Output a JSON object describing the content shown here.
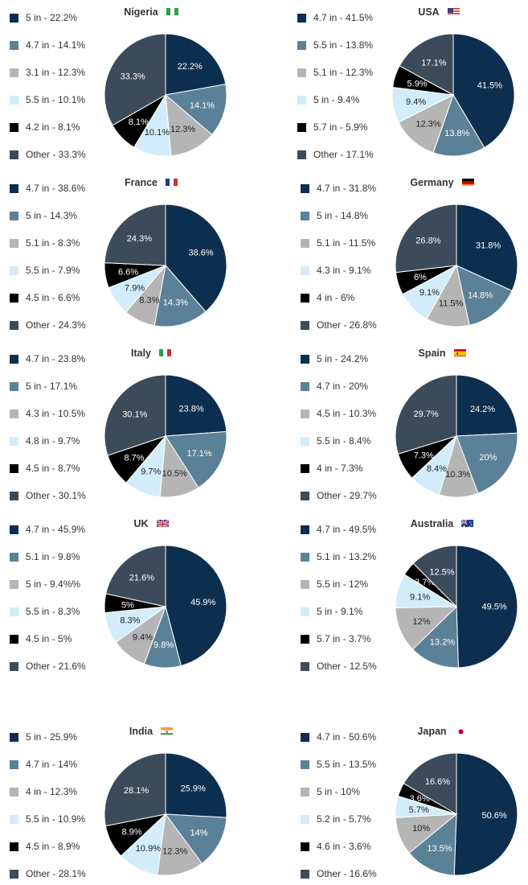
{
  "colors": {
    "c1": "#0d2f4f",
    "c2": "#5b8198",
    "c3": "#b5b5b5",
    "c4": "#d2ecfa",
    "c5": "#000000",
    "c6": "#3b4b5a"
  },
  "chart_data": [
    {
      "type": "pie",
      "title": "Nigeria",
      "flag": "nigeria-flag-icon",
      "slices": [
        {
          "label": "5 in",
          "value": 22.2,
          "legend": "5 in - 22.2%",
          "data_label": "22.2%",
          "color": "c1"
        },
        {
          "label": "4.7 in",
          "value": 14.1,
          "legend": "4.7 in - 14.1%",
          "data_label": "14.1%",
          "color": "c2"
        },
        {
          "label": "3.1 in",
          "value": 12.3,
          "legend": "3.1 in - 12.3%",
          "data_label": "12.3%",
          "color": "c3"
        },
        {
          "label": "5.5 in",
          "value": 10.1,
          "legend": "5.5 in - 10.1%",
          "data_label": "10.1%",
          "color": "c4"
        },
        {
          "label": "4.2 in",
          "value": 8.1,
          "legend": "4.2 in - 8.1%",
          "data_label": "8.1%",
          "color": "c5"
        },
        {
          "label": "Other",
          "value": 33.3,
          "legend": "Other - 33.3%",
          "data_label": "33.3%",
          "color": "c6"
        }
      ]
    },
    {
      "type": "pie",
      "title": "USA",
      "flag": "usa-flag-icon",
      "slices": [
        {
          "label": "4.7 in",
          "value": 41.5,
          "legend": "4.7 in - 41.5%",
          "data_label": "41.5%",
          "color": "c1"
        },
        {
          "label": "5.5 in",
          "value": 13.8,
          "legend": "5.5 in - 13.8%",
          "data_label": "13.8%",
          "color": "c2"
        },
        {
          "label": "5.1 in",
          "value": 12.3,
          "legend": "5.1 in - 12.3%",
          "data_label": "12.3%",
          "color": "c3"
        },
        {
          "label": "5 in",
          "value": 9.4,
          "legend": "5 in - 9.4%",
          "data_label": "9.4%",
          "color": "c4"
        },
        {
          "label": "5.7 in",
          "value": 5.9,
          "legend": "5.7 in - 5.9%",
          "data_label": "5.9%",
          "color": "c5"
        },
        {
          "label": "Other",
          "value": 17.1,
          "legend": "Other - 17.1%",
          "data_label": "17.1%",
          "color": "c6"
        }
      ]
    },
    {
      "type": "pie",
      "title": "France",
      "flag": "france-flag-icon",
      "slices": [
        {
          "label": "4.7 in",
          "value": 38.6,
          "legend": "4.7 in - 38.6%",
          "data_label": "38.6%",
          "color": "c1"
        },
        {
          "label": "5 in",
          "value": 14.3,
          "legend": "5 in - 14.3%",
          "data_label": "14.3%",
          "color": "c2"
        },
        {
          "label": "5.1 in",
          "value": 8.3,
          "legend": "5.1 in - 8.3%",
          "data_label": "8.3%",
          "color": "c3"
        },
        {
          "label": "5.5 in",
          "value": 7.9,
          "legend": "5.5 in - 7.9%",
          "data_label": "7.9%",
          "color": "c4"
        },
        {
          "label": "4.5 in",
          "value": 6.6,
          "legend": "4.5 in - 6.6%",
          "data_label": "6.6%",
          "color": "c5"
        },
        {
          "label": "Other",
          "value": 24.3,
          "legend": "Other - 24.3%",
          "data_label": "24.3%",
          "color": "c6"
        }
      ]
    },
    {
      "type": "pie",
      "title": "Germany",
      "flag": "germany-flag-icon",
      "slices": [
        {
          "label": "4.7 in",
          "value": 31.8,
          "legend": "4.7 in - 31.8%",
          "data_label": "31.8%",
          "color": "c1"
        },
        {
          "label": "5 in",
          "value": 14.8,
          "legend": "5 in - 14.8%",
          "data_label": "14.8%",
          "color": "c2"
        },
        {
          "label": "5.1 in",
          "value": 11.5,
          "legend": "5.1 in - 11.5%",
          "data_label": "11.5%",
          "color": "c3"
        },
        {
          "label": "4.3 in",
          "value": 9.1,
          "legend": "4.3 in - 9.1%",
          "data_label": "9.1%",
          "color": "c4"
        },
        {
          "label": "4 in",
          "value": 6,
          "legend": "4 in - 6%",
          "data_label": "6%",
          "color": "c5"
        },
        {
          "label": "Other",
          "value": 26.8,
          "legend": "Other - 26.8%",
          "data_label": "26.8%",
          "color": "c6"
        }
      ]
    },
    {
      "type": "pie",
      "title": "Italy",
      "flag": "italy-flag-icon",
      "slices": [
        {
          "label": "4.7 in",
          "value": 23.8,
          "legend": "4.7 in - 23.8%",
          "data_label": "23.8%",
          "color": "c1"
        },
        {
          "label": "5 in",
          "value": 17.1,
          "legend": "5 in - 17.1%",
          "data_label": "17.1%",
          "color": "c2"
        },
        {
          "label": "4.3 in",
          "value": 10.5,
          "legend": "4.3 in - 10.5%",
          "data_label": "10.5%",
          "color": "c3"
        },
        {
          "label": "4.8 in",
          "value": 9.7,
          "legend": "4.8 in - 9.7%",
          "data_label": "9.7%",
          "color": "c4"
        },
        {
          "label": "4.5 in",
          "value": 8.7,
          "legend": "4.5 in - 8.7%",
          "data_label": "8.7%",
          "color": "c5"
        },
        {
          "label": "Other",
          "value": 30.1,
          "legend": "Other - 30.1%",
          "data_label": "30.1%",
          "color": "c6"
        }
      ]
    },
    {
      "type": "pie",
      "title": "Spain",
      "flag": "spain-flag-icon",
      "slices": [
        {
          "label": "5 in",
          "value": 24.2,
          "legend": "5 in - 24.2%",
          "data_label": "24.2%",
          "color": "c1"
        },
        {
          "label": "4.7 in",
          "value": 20,
          "legend": "4.7 in - 20%",
          "data_label": "20%",
          "color": "c2"
        },
        {
          "label": "4.5 in",
          "value": 10.3,
          "legend": "4.5 in - 10.3%",
          "data_label": "10.3%",
          "color": "c3"
        },
        {
          "label": "5.5 in",
          "value": 8.4,
          "legend": "5.5 in - 8.4%",
          "data_label": "8.4%",
          "color": "c4"
        },
        {
          "label": "4 in",
          "value": 7.3,
          "legend": "4 in - 7.3%",
          "data_label": "7.3%",
          "color": "c5"
        },
        {
          "label": "Other",
          "value": 29.7,
          "legend": "Other - 29.7%",
          "data_label": "29.7%",
          "color": "c6"
        }
      ]
    },
    {
      "type": "pie",
      "title": "UK",
      "flag": "uk-flag-icon",
      "slices": [
        {
          "label": "4.7 in",
          "value": 45.9,
          "legend": "4.7 in - 45.9%",
          "data_label": "45.9%",
          "color": "c1"
        },
        {
          "label": "5.1 in",
          "value": 9.8,
          "legend": "5.1 in - 9.8%",
          "data_label": "9.8%",
          "color": "c2"
        },
        {
          "label": "5 in",
          "value": 9.4,
          "legend": "5 in - 9.4%%",
          "data_label": "9.4%",
          "color": "c3"
        },
        {
          "label": "5.5 in",
          "value": 8.3,
          "legend": "5.5 in - 8.3%",
          "data_label": "8.3%",
          "color": "c4"
        },
        {
          "label": "4.5 in",
          "value": 5,
          "legend": "4.5 in - 5%",
          "data_label": "5%",
          "color": "c5"
        },
        {
          "label": "Other",
          "value": 21.6,
          "legend": "Other - 21.6%",
          "data_label": "21.6%",
          "color": "c6"
        }
      ]
    },
    {
      "type": "pie",
      "title": "Australia",
      "flag": "australia-flag-icon",
      "slices": [
        {
          "label": "4.7 in",
          "value": 49.5,
          "legend": "4.7 in - 49.5%",
          "data_label": "49.5%",
          "color": "c1"
        },
        {
          "label": "5.1 in",
          "value": 13.2,
          "legend": "5.1 in - 13.2%",
          "data_label": "13.2%",
          "color": "c2"
        },
        {
          "label": "5.5 in",
          "value": 12,
          "legend": "5.5 in - 12%",
          "data_label": "12%",
          "color": "c3"
        },
        {
          "label": "5 in",
          "value": 9.1,
          "legend": "5 in - 9.1%",
          "data_label": "9.1%",
          "color": "c4"
        },
        {
          "label": "5.7 in",
          "value": 3.7,
          "legend": "5.7 in - 3.7%",
          "data_label": "3.7%",
          "color": "c5"
        },
        {
          "label": "Other",
          "value": 12.5,
          "legend": "Other - 12.5%",
          "data_label": "12.5%",
          "color": "c6"
        }
      ]
    },
    {
      "type": "pie",
      "title": "India",
      "flag": "india-flag-icon",
      "slices": [
        {
          "label": "5 in",
          "value": 25.9,
          "legend": "5 in - 25.9%",
          "data_label": "25.9%",
          "color": "c1"
        },
        {
          "label": "4.7 in",
          "value": 14,
          "legend": "4.7 in - 14%",
          "data_label": "14%",
          "color": "c2"
        },
        {
          "label": "4 in",
          "value": 12.3,
          "legend": "4 in - 12.3%",
          "data_label": "12.3%",
          "color": "c3"
        },
        {
          "label": "5.5 in",
          "value": 10.9,
          "legend": "5.5 in - 10.9%",
          "data_label": "10.9%",
          "color": "c4"
        },
        {
          "label": "4.5 in",
          "value": 8.9,
          "legend": "4.5 in - 8.9%",
          "data_label": "8.9%",
          "color": "c5"
        },
        {
          "label": "Other",
          "value": 28.1,
          "legend": "Other - 28.1%",
          "data_label": "28.1%",
          "color": "c6"
        }
      ]
    },
    {
      "type": "pie",
      "title": "Japan",
      "flag": "japan-flag-icon",
      "slices": [
        {
          "label": "4.7 in",
          "value": 50.6,
          "legend": "4.7 in - 50.6%",
          "data_label": "50.6%",
          "color": "c1"
        },
        {
          "label": "5.5 in",
          "value": 13.5,
          "legend": "5.5 in - 13.5%",
          "data_label": "13.5%",
          "color": "c2"
        },
        {
          "label": "5 in",
          "value": 10,
          "legend": "5 in - 10%",
          "data_label": "10%",
          "color": "c3"
        },
        {
          "label": "5.2 in",
          "value": 5.7,
          "legend": "5.2 in - 5.7%",
          "data_label": "5.7%",
          "color": "c4"
        },
        {
          "label": "4.6 in",
          "value": 3.6,
          "legend": "4.6 in - 3.6%",
          "data_label": "3.6%",
          "color": "c5"
        },
        {
          "label": "Other",
          "value": 16.6,
          "legend": "Other - 16.6%",
          "data_label": "16.6%",
          "color": "c6"
        }
      ]
    }
  ]
}
